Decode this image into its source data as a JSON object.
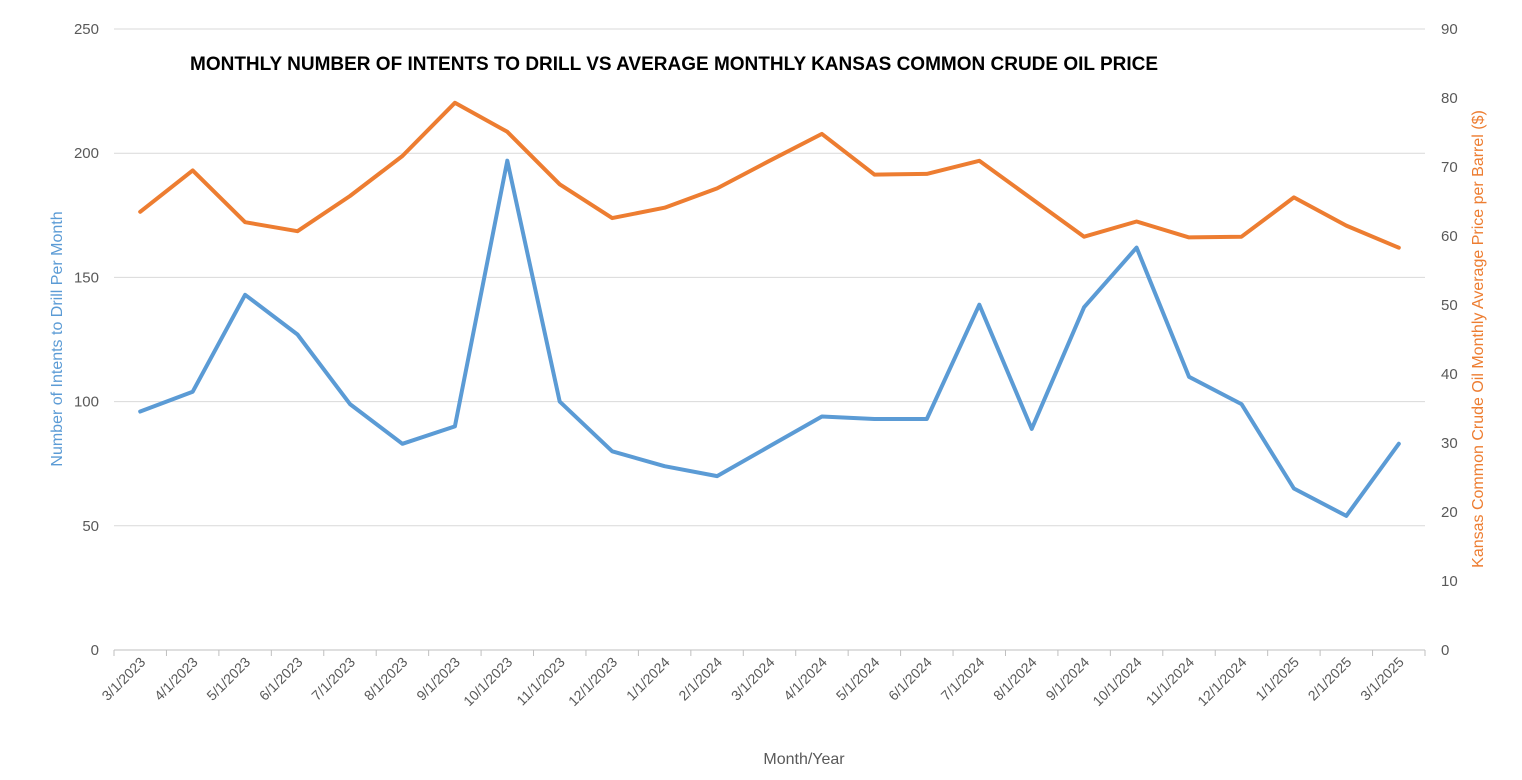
{
  "chart_data": {
    "type": "line",
    "title": "MONTHLY NUMBER OF INTENTS TO DRILL VS AVERAGE MONTHLY KANSAS COMMON CRUDE OIL PRICE",
    "xlabel": "Month/Year",
    "ylabel_left": "Number of Intents to Drill  Per Month",
    "ylabel_right": "Kansas Common Crude Oil Monthly Average Price per Barrel ($)",
    "categories": [
      "3/1/2023",
      "4/1/2023",
      "5/1/2023",
      "6/1/2023",
      "7/1/2023",
      "8/1/2023",
      "9/1/2023",
      "10/1/2023",
      "11/1/2023",
      "12/1/2023",
      "1/1/2024",
      "2/1/2024",
      "3/1/2024",
      "4/1/2024",
      "5/1/2024",
      "6/1/2024",
      "7/1/2024",
      "8/1/2024",
      "9/1/2024",
      "10/1/2024",
      "11/1/2024",
      "12/1/2024",
      "1/1/2025",
      "2/1/2025",
      "3/1/2025"
    ],
    "ylim_left": [
      0,
      250
    ],
    "yticks_left": [
      "0",
      "50",
      "100",
      "150",
      "200",
      "250"
    ],
    "ylim_right": [
      0,
      90
    ],
    "yticks_right": [
      "0",
      "10",
      "20",
      "30",
      "40",
      "50",
      "60",
      "70",
      "80",
      "90"
    ],
    "grid": true,
    "series": [
      {
        "axis": "left",
        "color": "#5B9BD5",
        "values": [
          96,
          104,
          143,
          127,
          99,
          83,
          90,
          197,
          100,
          80,
          74,
          70,
          82,
          94,
          93,
          93,
          139,
          89,
          138,
          162,
          110,
          99,
          65,
          54,
          83
        ]
      },
      {
        "axis": "right",
        "color": "#ED7D31",
        "values": [
          63.5,
          69.5,
          62,
          60.7,
          65.8,
          71.6,
          79.3,
          75.1,
          67.5,
          62.6,
          64.1,
          66.9,
          70.9,
          74.8,
          68.9,
          69.0,
          70.9,
          65.4,
          59.9,
          62.1,
          59.8,
          59.9,
          65.6,
          61.5,
          58.3
        ]
      }
    ]
  }
}
